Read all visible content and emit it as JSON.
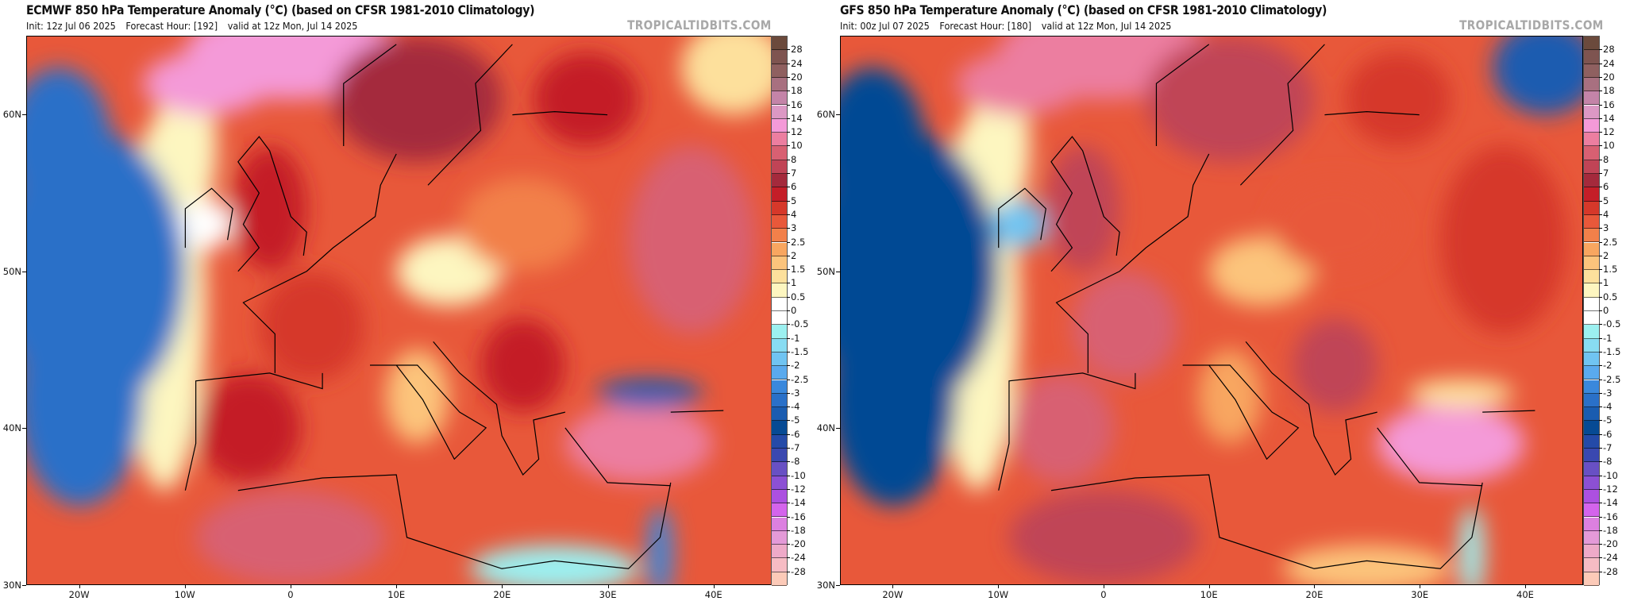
{
  "panels": [
    {
      "id": "ecmwf",
      "title": "ECMWF 850 hPa Temperature Anomaly (°C) (based on CFSR 1981-2010 Climatology)",
      "init": "Init: 12z Jul 06 2025",
      "forecast_hour": "Forecast Hour: [192]",
      "valid": "valid at 12z Mon, Jul 14 2025",
      "brand": "TROPICALTIDBITS.COM",
      "regional_anomalies_c": {
        "north_atlantic_west_of_ireland": -4,
        "ireland": 0,
        "great_britain": 5,
        "norwegian_sea": 12,
        "scandinavia": 6,
        "france": 4,
        "central_europe_czechia": 0.5,
        "poland_baltics": 2.5,
        "western_russia": 8,
        "iberia": 5,
        "north_africa_atlas": 8,
        "italy": 1.5,
        "balkans": 5,
        "turkey_anatolia": 10,
        "black_sea_coast_north_turkey": -5,
        "levant_coast": -3,
        "egypt_libya_coast": -1,
        "finland_karelia": 5,
        "northwest_russia_far_ne": 1
      }
    },
    {
      "id": "gfs",
      "title": "GFS 850 hPa Temperature Anomaly (°C) (based on CFSR 1981-2010 Climatology)",
      "init": "Init: 00z Jul 07 2025",
      "forecast_hour": "Forecast Hour: [180]",
      "valid": "valid at 12z Mon, Jul 14 2025",
      "brand": "TROPICALTIDBITS.COM",
      "regional_anomalies_c": {
        "north_atlantic_west_of_ireland": -6,
        "ireland": -2,
        "great_britain": 7,
        "norwegian_sea": 10,
        "scandinavia": 7,
        "france": 8,
        "central_europe_czechia": 1.5,
        "poland_baltics": 3,
        "western_russia": 4,
        "iberia": 8,
        "north_africa_atlas": 7,
        "italy": 2,
        "balkans": 7,
        "turkey_anatolia": 12,
        "black_sea_coast_north_turkey": 1,
        "levant_coast": -1,
        "egypt_libya_coast": 1.5,
        "finland_karelia": 4,
        "northwest_russia_far_ne": -5
      }
    }
  ],
  "axes": {
    "lat_ticks": [
      "60N",
      "50N",
      "40N",
      "30N"
    ],
    "lat_values": [
      60,
      50,
      40,
      30
    ],
    "lon_ticks": [
      "20W",
      "10W",
      "0",
      "10E",
      "20E",
      "30E",
      "40E"
    ],
    "lon_values": [
      -20,
      -10,
      0,
      10,
      20,
      30,
      40
    ],
    "lat_range": [
      30,
      65
    ],
    "lon_range": [
      -25,
      45.5
    ]
  },
  "colorbar": {
    "units": "°C",
    "labels": [
      "28",
      "24",
      "20",
      "18",
      "16",
      "14",
      "12",
      "10",
      "8",
      "7",
      "6",
      "5",
      "4",
      "3",
      "2.5",
      "2",
      "1.5",
      "1",
      "0.5",
      "0",
      "-0.5",
      "-1",
      "-1.5",
      "-2",
      "-2.5",
      "-3",
      "-4",
      "-5",
      "-6",
      "-7",
      "-8",
      "-10",
      "-12",
      "-14",
      "-16",
      "-18",
      "-20",
      "-24",
      "-28"
    ],
    "colors": [
      "#6b4a3c",
      "#7e5450",
      "#8f6060",
      "#a87080",
      "#c484a8",
      "#dc98c4",
      "#f49ad8",
      "#ec7ea0",
      "#d86072",
      "#c04456",
      "#a42a3c",
      "#c41e28",
      "#d6382a",
      "#e8583a",
      "#f2804a",
      "#f8a660",
      "#fcc47c",
      "#fde09c",
      "#fdf6c0",
      "#ffffff",
      "#ffffff",
      "#9cf0f0",
      "#88dcf2",
      "#70c4f2",
      "#5aaaee",
      "#3a88dc",
      "#2a70c8",
      "#1a5cb0",
      "#064a94",
      "#244aa8",
      "#3a48b0",
      "#6850c4",
      "#8c50d4",
      "#ac50e0",
      "#d464ec",
      "#dc80e0",
      "#e49ad8",
      "#eeaac8",
      "#f6bcc4",
      "#fccab8"
    ]
  }
}
